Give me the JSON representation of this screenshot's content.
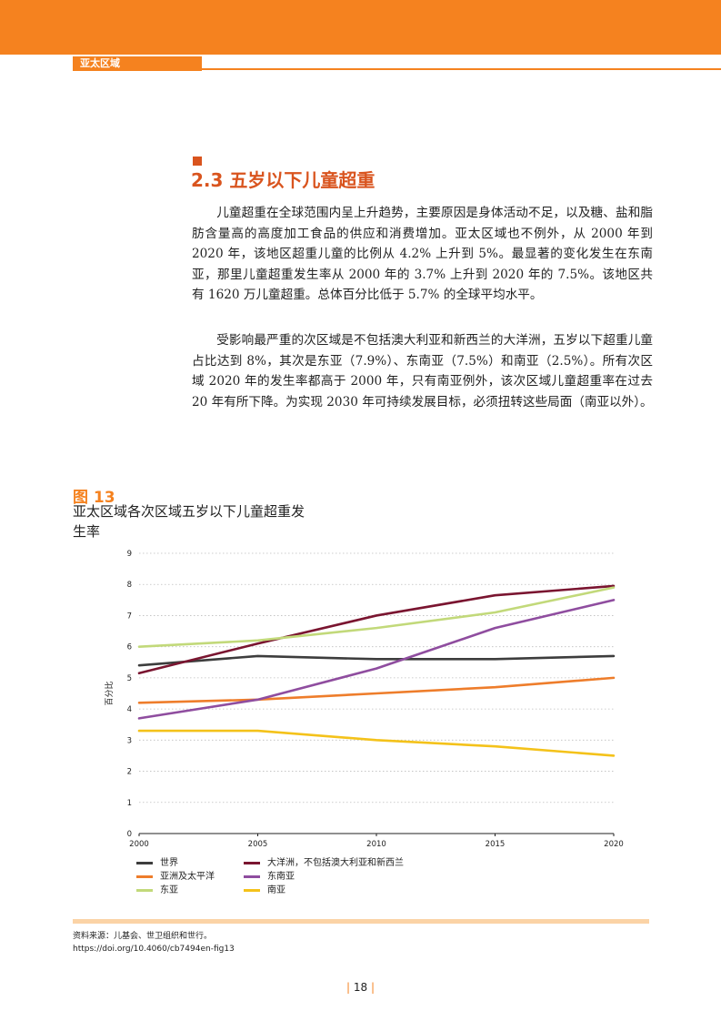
{
  "header": {
    "region": "亚太区域"
  },
  "section": {
    "title": "2.3 五岁以下儿童超重"
  },
  "paragraphs": [
    "儿童超重在全球范围内呈上升趋势，主要原因是身体活动不足，以及糖、盐和脂肪含量高的高度加工食品的供应和消费增加。亚太区域也不例外，从 2000 年到 2020 年，该地区超重儿童的比例从 4.2% 上升到 5%。最显著的变化发生在东南亚，那里儿童超重发生率从 2000 年的 3.7% 上升到 2020 年的 7.5%。该地区共有 1620 万儿童超重。总体百分比低于 5.7% 的全球平均水平。",
    "受影响最严重的次区域是不包括澳大利亚和新西兰的大洋洲，五岁以下超重儿童占比达到 8%，其次是东亚（7.9%）、东南亚（7.5%）和南亚（2.5%）。所有次区域 2020 年的发生率都高于 2000 年，只有南亚例外，该次区域儿童超重率在过去 20 年有所下降。为实现 2030 年可持续发展目标，必须扭转这些局面（南亚以外）。"
  ],
  "figure": {
    "label": "图 13",
    "title": "亚太区域各次区域五岁以下儿童超重发生率"
  },
  "chart_data": {
    "type": "line",
    "x": [
      2000,
      2005,
      2010,
      2015,
      2020
    ],
    "ylabel": "百分比",
    "xlabel": "",
    "ylim": [
      0,
      9
    ],
    "yticks": [
      0,
      1,
      2,
      3,
      4,
      5,
      6,
      7,
      8,
      9
    ],
    "grid": "horizontal dotted",
    "series": [
      {
        "name": "世界",
        "color": "#3d3d3d",
        "values": [
          5.4,
          5.7,
          5.6,
          5.6,
          5.7
        ]
      },
      {
        "name": "大洋洲，不包括澳大利亚和新西兰",
        "color": "#7a1530",
        "values": [
          5.15,
          6.1,
          7.0,
          7.65,
          7.95
        ]
      },
      {
        "name": "亚洲及太平洋",
        "color": "#ee7d2b",
        "values": [
          4.2,
          4.3,
          4.5,
          4.7,
          5.0
        ]
      },
      {
        "name": "东南亚",
        "color": "#8f4d9f",
        "values": [
          3.7,
          4.3,
          5.3,
          6.6,
          7.5
        ]
      },
      {
        "name": "东亚",
        "color": "#c2d97a",
        "values": [
          6.0,
          6.2,
          6.6,
          7.1,
          7.9
        ]
      },
      {
        "name": "南亚",
        "color": "#f4c21a",
        "values": [
          3.3,
          3.3,
          3.0,
          2.8,
          2.5
        ]
      }
    ]
  },
  "source": {
    "text": "资料来源：儿基会、世卫组织和世行。",
    "doi": "https://doi.org/10.4060/cb7494en-fig13"
  },
  "page": {
    "number": "18"
  }
}
